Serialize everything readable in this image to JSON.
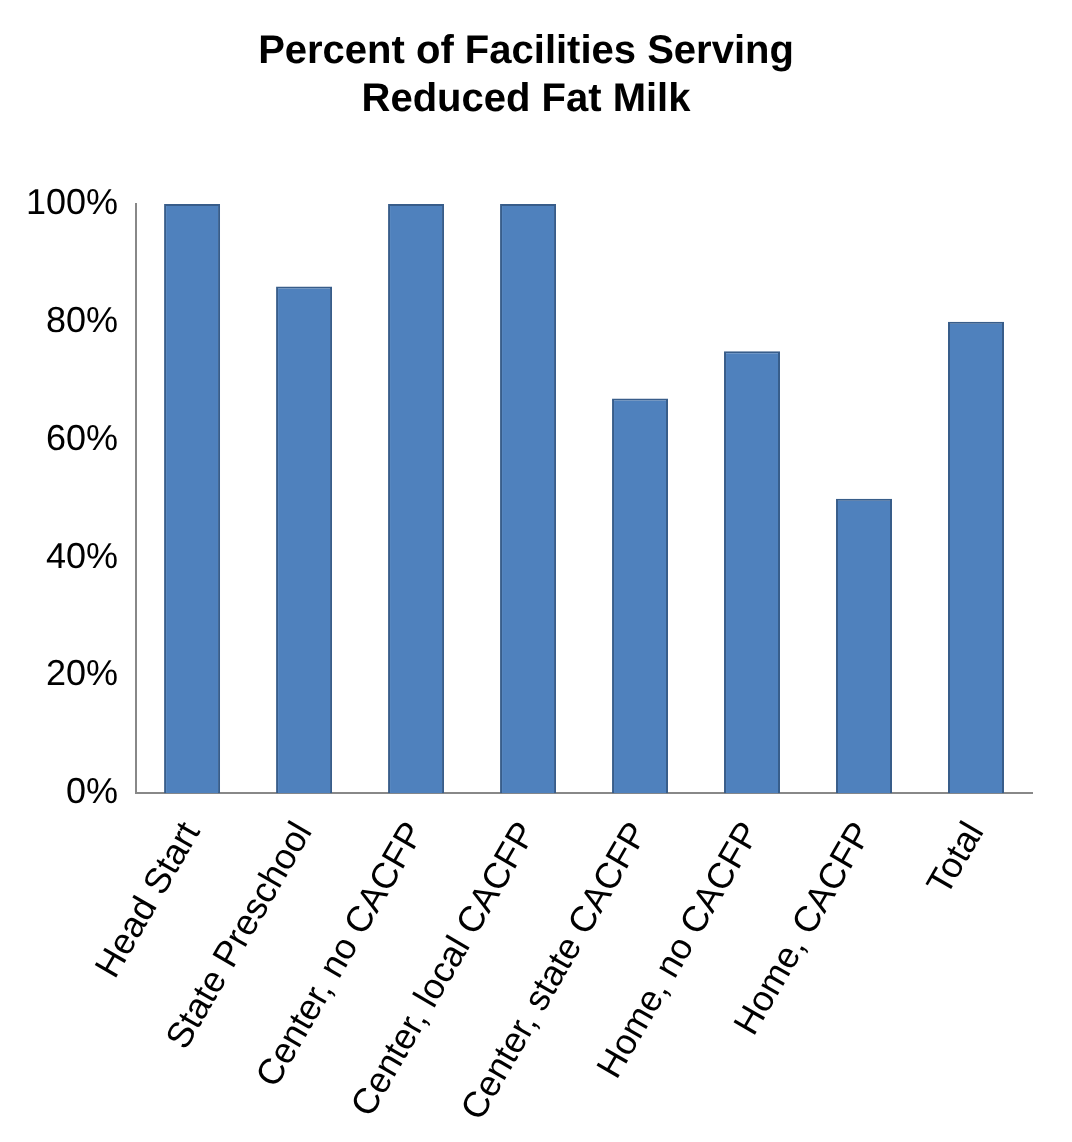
{
  "chart_data": {
    "type": "bar",
    "title": "Percent of Facilities Serving\nReduced Fat Milk",
    "categories": [
      "Head Start",
      "State Preschool",
      "Center, no CACFP",
      "Center, local CACFP",
      "Center, state CACFP",
      "Home, no CACFP",
      "Home, CACFP",
      "Total"
    ],
    "values": [
      100,
      86,
      100,
      100,
      67,
      75,
      50,
      80
    ],
    "color": "#4f81bd",
    "ylim": [
      0,
      100
    ],
    "yticks": [
      {
        "value": 0,
        "label": "0%"
      },
      {
        "value": 20,
        "label": "20%"
      },
      {
        "value": 40,
        "label": "40%"
      },
      {
        "value": 60,
        "label": "60%"
      },
      {
        "value": 80,
        "label": "80%"
      },
      {
        "value": 100,
        "label": "100%"
      }
    ],
    "grid": false,
    "legend": false
  }
}
